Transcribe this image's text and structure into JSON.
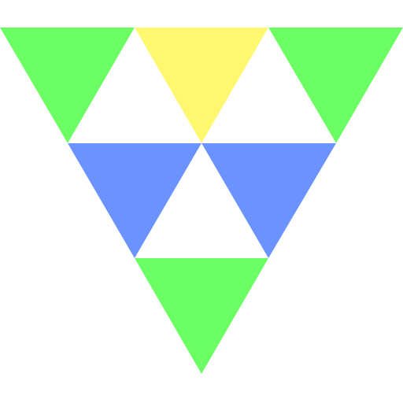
{
  "colors": {
    "background": "#ffffff",
    "green": "#6bff63",
    "yellow": "#fff86f",
    "blue": "#6a93ff",
    "white": "#ffffff"
  },
  "triangles": [
    {
      "name": "top-left-green-triangle",
      "color_key": "green"
    },
    {
      "name": "top-center-yellow-triangle",
      "color_key": "yellow"
    },
    {
      "name": "top-right-green-triangle",
      "color_key": "green"
    },
    {
      "name": "upper-left-white-triangle",
      "color_key": "white"
    },
    {
      "name": "upper-right-white-triangle",
      "color_key": "white"
    },
    {
      "name": "middle-left-blue-triangle",
      "color_key": "blue"
    },
    {
      "name": "middle-right-blue-triangle",
      "color_key": "blue"
    },
    {
      "name": "center-white-triangle",
      "color_key": "white"
    },
    {
      "name": "bottom-green-triangle",
      "color_key": "green"
    }
  ]
}
